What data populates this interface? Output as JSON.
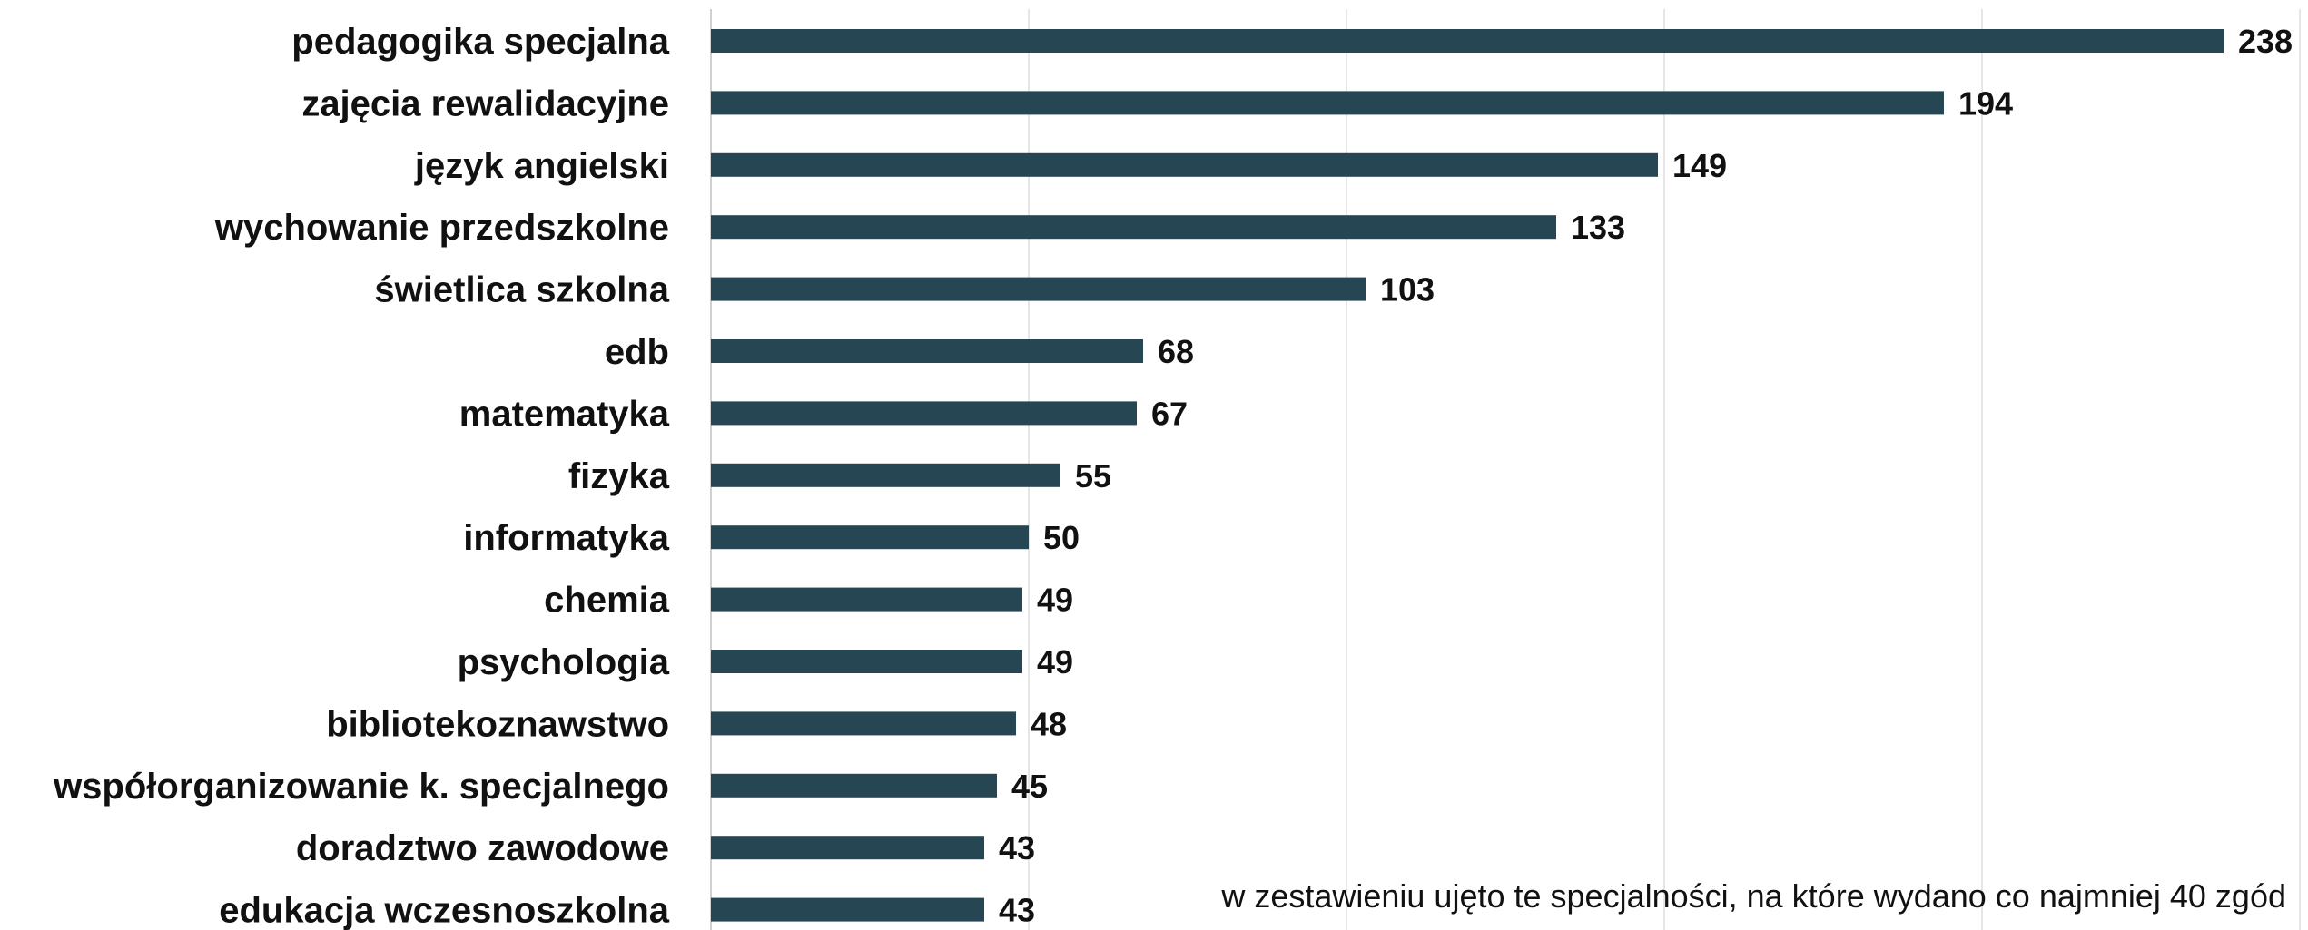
{
  "chart_data": {
    "type": "bar",
    "orientation": "horizontal",
    "categories": [
      "pedagogika specjalna",
      "zajęcia rewalidacyjne",
      "język angielski",
      "wychowanie przedszkolne",
      "świetlica szkolna",
      "edb",
      "matematyka",
      "fizyka",
      "informatyka",
      "chemia",
      "psychologia",
      "bibliotekoznawstwo",
      "współorganizowanie k. specjalnego",
      "doradztwo zawodowe",
      "edukacja wczesnoszkolna"
    ],
    "values": [
      238,
      194,
      149,
      133,
      103,
      68,
      67,
      55,
      50,
      49,
      49,
      48,
      45,
      43,
      43
    ],
    "xlim": [
      0,
      250
    ],
    "grid": true,
    "data_labels": true,
    "bar_color": "#264653",
    "annotation": "w zestawieniu ujęto te specjalności, na które wydano co najmniej 40 zgód"
  }
}
